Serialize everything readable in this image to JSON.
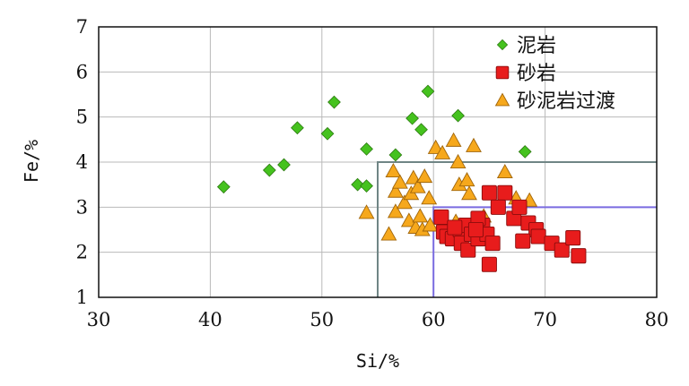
{
  "chart_data": {
    "type": "scatter",
    "xlabel": "Si/%",
    "ylabel": "Fe/%",
    "xlim": [
      30,
      80
    ],
    "ylim": [
      1,
      7
    ],
    "xticks": [
      "30",
      "40",
      "50",
      "60",
      "70",
      "80"
    ],
    "yticks": [
      "1",
      "2",
      "3",
      "4",
      "5",
      "6",
      "7"
    ],
    "grid": true,
    "legend_position": "top-right",
    "boundary_boxes": [
      {
        "xmin": 55,
        "xmax": 80,
        "ymin": 1,
        "ymax": 4,
        "color": "#6f8585"
      },
      {
        "xmin": 60,
        "xmax": 80,
        "ymin": 1,
        "ymax": 3,
        "color": "#7a6be0"
      }
    ],
    "series": [
      {
        "name": "泥岩",
        "marker": "diamond",
        "color": "#45c21e",
        "points": [
          [
            41.2,
            3.45
          ],
          [
            45.3,
            3.82
          ],
          [
            46.6,
            3.94
          ],
          [
            47.8,
            4.76
          ],
          [
            50.5,
            4.63
          ],
          [
            51.1,
            5.33
          ],
          [
            53.2,
            3.5
          ],
          [
            54.0,
            3.47
          ],
          [
            54.0,
            4.29
          ],
          [
            56.6,
            4.16
          ],
          [
            58.1,
            4.97
          ],
          [
            58.9,
            4.72
          ],
          [
            59.5,
            5.57
          ],
          [
            62.2,
            5.03
          ],
          [
            68.2,
            4.23
          ]
        ]
      },
      {
        "name": "砂岩",
        "marker": "square",
        "color": "#e81c1c",
        "points": [
          [
            60.7,
            2.78
          ],
          [
            60.9,
            2.45
          ],
          [
            61.2,
            2.35
          ],
          [
            61.7,
            2.3
          ],
          [
            62.4,
            2.5
          ],
          [
            62.9,
            2.6
          ],
          [
            62.5,
            2.2
          ],
          [
            63.1,
            2.05
          ],
          [
            63.4,
            2.4
          ],
          [
            64.0,
            2.3
          ],
          [
            64.4,
            2.6
          ],
          [
            64.8,
            2.4
          ],
          [
            65.3,
            2.2
          ],
          [
            65.0,
            3.32
          ],
          [
            66.4,
            3.32
          ],
          [
            65.8,
            3.0
          ],
          [
            67.2,
            2.75
          ],
          [
            67.7,
            3.0
          ],
          [
            68.5,
            2.65
          ],
          [
            69.2,
            2.5
          ],
          [
            68.0,
            2.25
          ],
          [
            69.4,
            2.35
          ],
          [
            70.6,
            2.2
          ],
          [
            71.5,
            2.05
          ],
          [
            72.5,
            2.32
          ],
          [
            73.0,
            1.92
          ],
          [
            65.0,
            1.73
          ],
          [
            64.0,
            2.75
          ],
          [
            61.9,
            2.55
          ],
          [
            63.8,
            2.5
          ]
        ]
      },
      {
        "name": "砂泥岩过渡",
        "marker": "triangle",
        "color": "#f6a81c",
        "points": [
          [
            54.0,
            2.88
          ],
          [
            56.0,
            2.4
          ],
          [
            56.4,
            3.8
          ],
          [
            56.6,
            3.35
          ],
          [
            56.6,
            2.9
          ],
          [
            57.0,
            3.55
          ],
          [
            57.4,
            3.1
          ],
          [
            57.8,
            2.7
          ],
          [
            58.0,
            3.3
          ],
          [
            58.2,
            3.65
          ],
          [
            58.4,
            2.55
          ],
          [
            58.6,
            3.45
          ],
          [
            58.8,
            2.8
          ],
          [
            59.0,
            2.5
          ],
          [
            59.2,
            3.68
          ],
          [
            59.6,
            3.2
          ],
          [
            60.2,
            4.32
          ],
          [
            60.8,
            4.2
          ],
          [
            61.8,
            4.48
          ],
          [
            62.2,
            4.0
          ],
          [
            63.6,
            4.36
          ],
          [
            62.3,
            3.5
          ],
          [
            63.0,
            3.6
          ],
          [
            63.2,
            3.3
          ],
          [
            62.0,
            2.68
          ],
          [
            64.5,
            2.8
          ],
          [
            66.4,
            3.78
          ],
          [
            67.4,
            3.2
          ],
          [
            68.6,
            3.15
          ],
          [
            59.7,
            2.6
          ]
        ]
      }
    ]
  }
}
